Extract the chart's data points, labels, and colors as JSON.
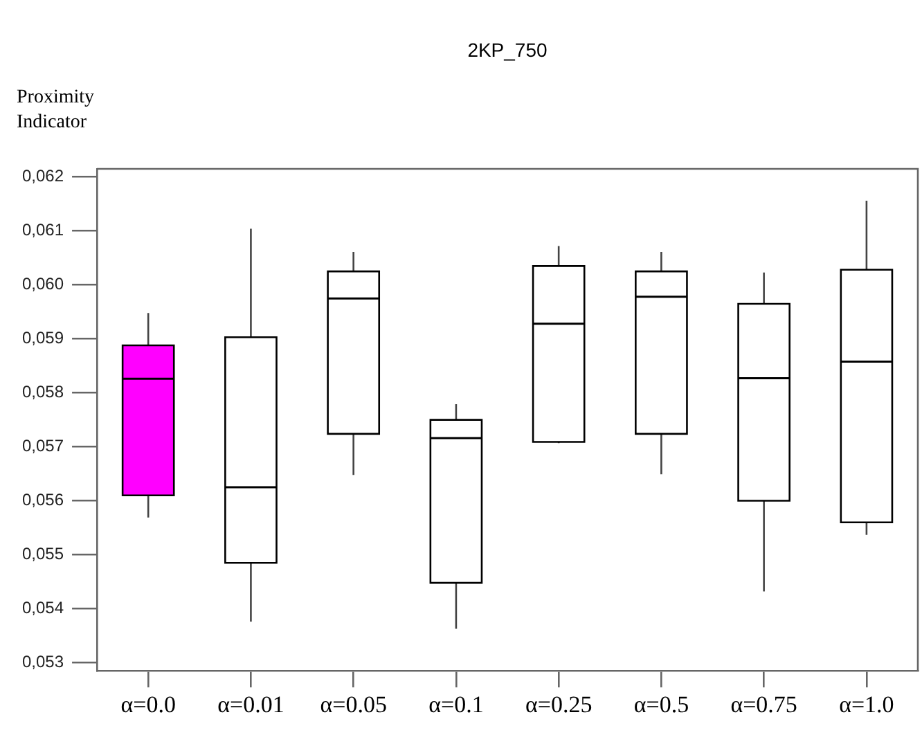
{
  "chart_data": {
    "type": "box",
    "title": "2KP_750",
    "ylabel": "Proximity Indicator",
    "categories": [
      "α=0.0",
      "α=0.01",
      "α=0.05",
      "α=0.1",
      "α=0.25",
      "α=0.5",
      "α=0.75",
      "α=1.0"
    ],
    "colors": [
      "#ff00ff",
      "#ffffff",
      "#ffffff",
      "#ffffff",
      "#ffffff",
      "#ffffff",
      "#ffffff",
      "#ffffff"
    ],
    "boxes": [
      {
        "low": 0.05569,
        "q1": 0.0561,
        "median": 0.05826,
        "q3": 0.05888,
        "high": 0.05948
      },
      {
        "low": 0.05376,
        "q1": 0.05485,
        "median": 0.05625,
        "q3": 0.05903,
        "high": 0.06104
      },
      {
        "low": 0.05648,
        "q1": 0.05724,
        "median": 0.05975,
        "q3": 0.06025,
        "high": 0.06061
      },
      {
        "low": 0.05363,
        "q1": 0.05448,
        "median": 0.05716,
        "q3": 0.0575,
        "high": 0.05779
      },
      {
        "low": 0.05707,
        "q1": 0.05709,
        "median": 0.05928,
        "q3": 0.06035,
        "high": 0.06072
      },
      {
        "low": 0.05649,
        "q1": 0.05724,
        "median": 0.05978,
        "q3": 0.06025,
        "high": 0.06061
      },
      {
        "low": 0.05432,
        "q1": 0.056,
        "median": 0.05827,
        "q3": 0.05965,
        "high": 0.06023
      },
      {
        "low": 0.05537,
        "q1": 0.0556,
        "median": 0.05858,
        "q3": 0.06028,
        "high": 0.06156
      }
    ],
    "ylim": [
      0.05285,
      0.06215
    ],
    "yticks": [
      {
        "value": 0.053,
        "label": "0,053"
      },
      {
        "value": 0.054,
        "label": "0,054"
      },
      {
        "value": 0.055,
        "label": "0,055"
      },
      {
        "value": 0.056,
        "label": "0,056"
      },
      {
        "value": 0.057,
        "label": "0,057"
      },
      {
        "value": 0.058,
        "label": "0,058"
      },
      {
        "value": 0.059,
        "label": "0,059"
      },
      {
        "value": 0.06,
        "label": "0,060"
      },
      {
        "value": 0.061,
        "label": "0,061"
      },
      {
        "value": 0.062,
        "label": "0,062"
      }
    ]
  }
}
